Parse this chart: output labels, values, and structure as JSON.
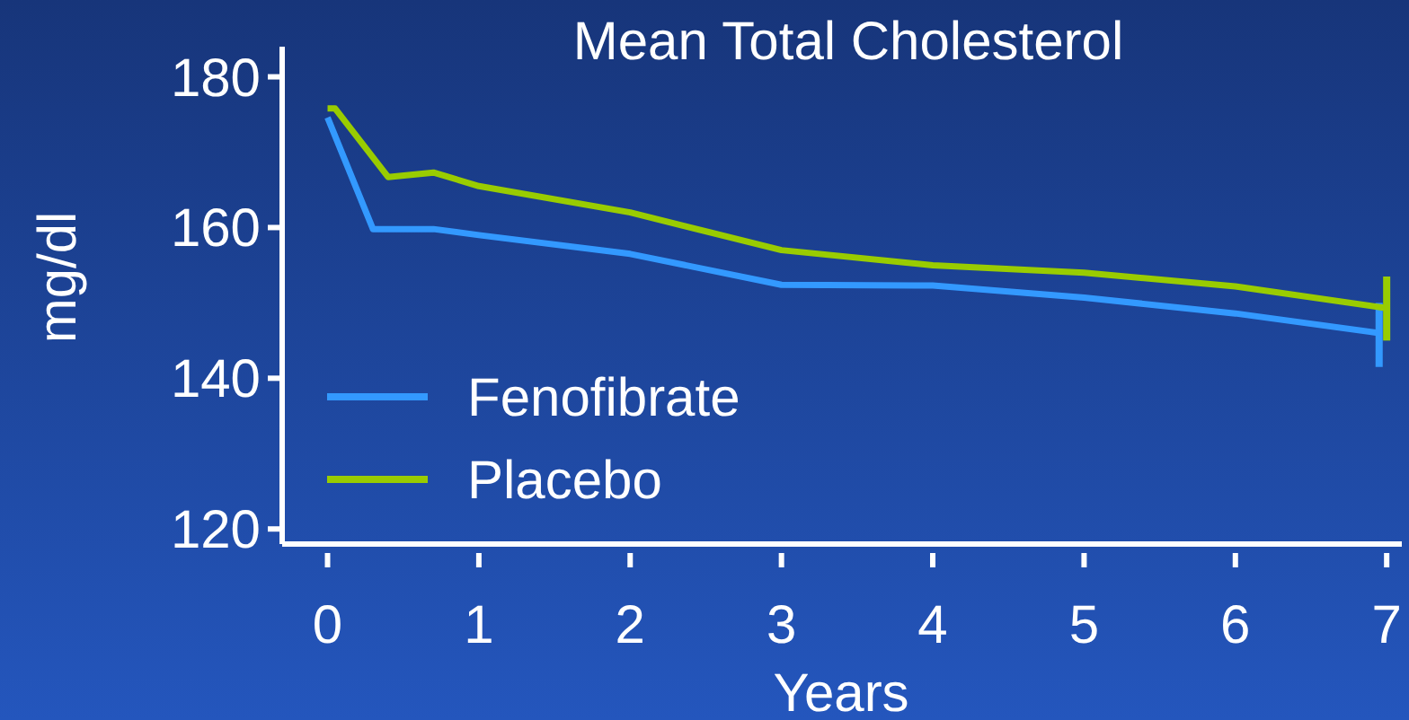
{
  "chart_data": {
    "type": "line",
    "title": "Mean Total Cholesterol",
    "xlabel": "Years",
    "ylabel": "mg/dl",
    "xlim": [
      -0.3,
      7.1
    ],
    "xticks": [
      0,
      1,
      2,
      3,
      4,
      5,
      6,
      7
    ],
    "ylim": [
      118,
      184
    ],
    "yticks": [
      120,
      140,
      160,
      180
    ],
    "grid": false,
    "legend": "bottom left",
    "marker": "none",
    "line_style": "solid",
    "series": [
      {
        "name": "Fenofibrate",
        "color": "#3399ff",
        "x": [
          0,
          0.3,
          0.7,
          1,
          2,
          3,
          4,
          5,
          6,
          6.95
        ],
        "values": [
          174.6,
          159.8,
          159.8,
          159,
          156.5,
          152.4,
          152.3,
          150.7,
          148.6,
          146
        ],
        "errors": [
          null,
          null,
          null,
          null,
          null,
          null,
          null,
          null,
          null,
          [
            141.5,
            150
          ]
        ]
      },
      {
        "name": "Placebo",
        "color": "#99cc00",
        "x": [
          0,
          0.05,
          0.4,
          0.7,
          1,
          2,
          3,
          4,
          5,
          6,
          7
        ],
        "values": [
          175.8,
          175.8,
          166.7,
          167.3,
          165.5,
          162,
          157,
          155,
          154,
          152.2,
          149.3
        ],
        "errors": [
          null,
          null,
          null,
          null,
          null,
          null,
          null,
          null,
          null,
          null,
          [
            145,
            153.5
          ]
        ]
      }
    ]
  }
}
